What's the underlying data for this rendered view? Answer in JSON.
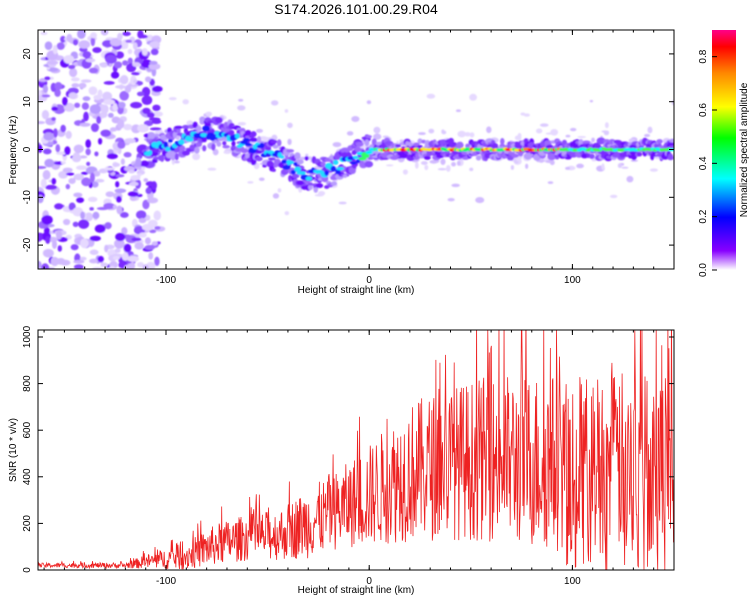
{
  "title": "S174.2026.101.00.29.R04",
  "chart_data": [
    {
      "type": "heatmap",
      "name": "spectrogram",
      "xlabel": "Height of straight line (km)",
      "ylabel": "Frequency (Hz)",
      "xlim": [
        -163,
        150
      ],
      "ylim": [
        -25,
        25
      ],
      "x_ticks": [
        -100,
        0,
        100
      ],
      "y_ticks": [
        -20,
        -10,
        0,
        10,
        20
      ],
      "ridge_frequency": [
        {
          "x": -110,
          "f": 0.0
        },
        {
          "x": -95,
          "f": 1.5
        },
        {
          "x": -80,
          "f": 3.5
        },
        {
          "x": -70,
          "f": 3.0
        },
        {
          "x": -60,
          "f": 1.0
        },
        {
          "x": -45,
          "f": -1.5
        },
        {
          "x": -35,
          "f": -4.5
        },
        {
          "x": -25,
          "f": -5.5
        },
        {
          "x": -15,
          "f": -3.5
        },
        {
          "x": -5,
          "f": -1.5
        },
        {
          "x": 0,
          "f": 0.0
        },
        {
          "x": 20,
          "f": 0.0
        },
        {
          "x": 150,
          "f": 0.0
        }
      ],
      "colorbar": {
        "label": "Normalized spectral amplitude",
        "range": [
          0,
          0.9
        ],
        "ticks": [
          "0.0",
          "0.2",
          "0.4",
          "0.6",
          "0.8"
        ],
        "colors": [
          "#ffffff",
          "#7700ff",
          "#0000ff",
          "#00ffff",
          "#00ff00",
          "#ffff00",
          "#ff8800",
          "#ff0000",
          "#ff0088"
        ]
      }
    },
    {
      "type": "line",
      "name": "snr",
      "xlabel": "Height of straight line (km)",
      "ylabel": "SNR (10 * v/v)",
      "xlim": [
        -163,
        150
      ],
      "ylim": [
        0,
        1030
      ],
      "x_ticks": [
        -100,
        0,
        100
      ],
      "y_ticks": [
        0,
        200,
        400,
        600,
        800,
        1000
      ],
      "color": "#ee2222",
      "envelope": [
        {
          "x": -163,
          "mean": 20,
          "amp": 10
        },
        {
          "x": -120,
          "mean": 20,
          "amp": 12
        },
        {
          "x": -110,
          "mean": 35,
          "amp": 30
        },
        {
          "x": -90,
          "mean": 60,
          "amp": 60
        },
        {
          "x": -75,
          "mean": 110,
          "amp": 90
        },
        {
          "x": -60,
          "mean": 140,
          "amp": 100
        },
        {
          "x": -45,
          "mean": 150,
          "amp": 110
        },
        {
          "x": -30,
          "mean": 200,
          "amp": 150
        },
        {
          "x": -15,
          "mean": 260,
          "amp": 170
        },
        {
          "x": 0,
          "mean": 320,
          "amp": 220
        },
        {
          "x": 20,
          "mean": 420,
          "amp": 300
        },
        {
          "x": 40,
          "mean": 460,
          "amp": 330
        },
        {
          "x": 60,
          "mean": 480,
          "amp": 360
        },
        {
          "x": 80,
          "mean": 470,
          "amp": 380
        },
        {
          "x": 100,
          "mean": 460,
          "amp": 390
        },
        {
          "x": 120,
          "mean": 460,
          "amp": 390
        },
        {
          "x": 150,
          "mean": 470,
          "amp": 400
        }
      ],
      "peak": {
        "x": 75,
        "y": 1030
      }
    }
  ]
}
